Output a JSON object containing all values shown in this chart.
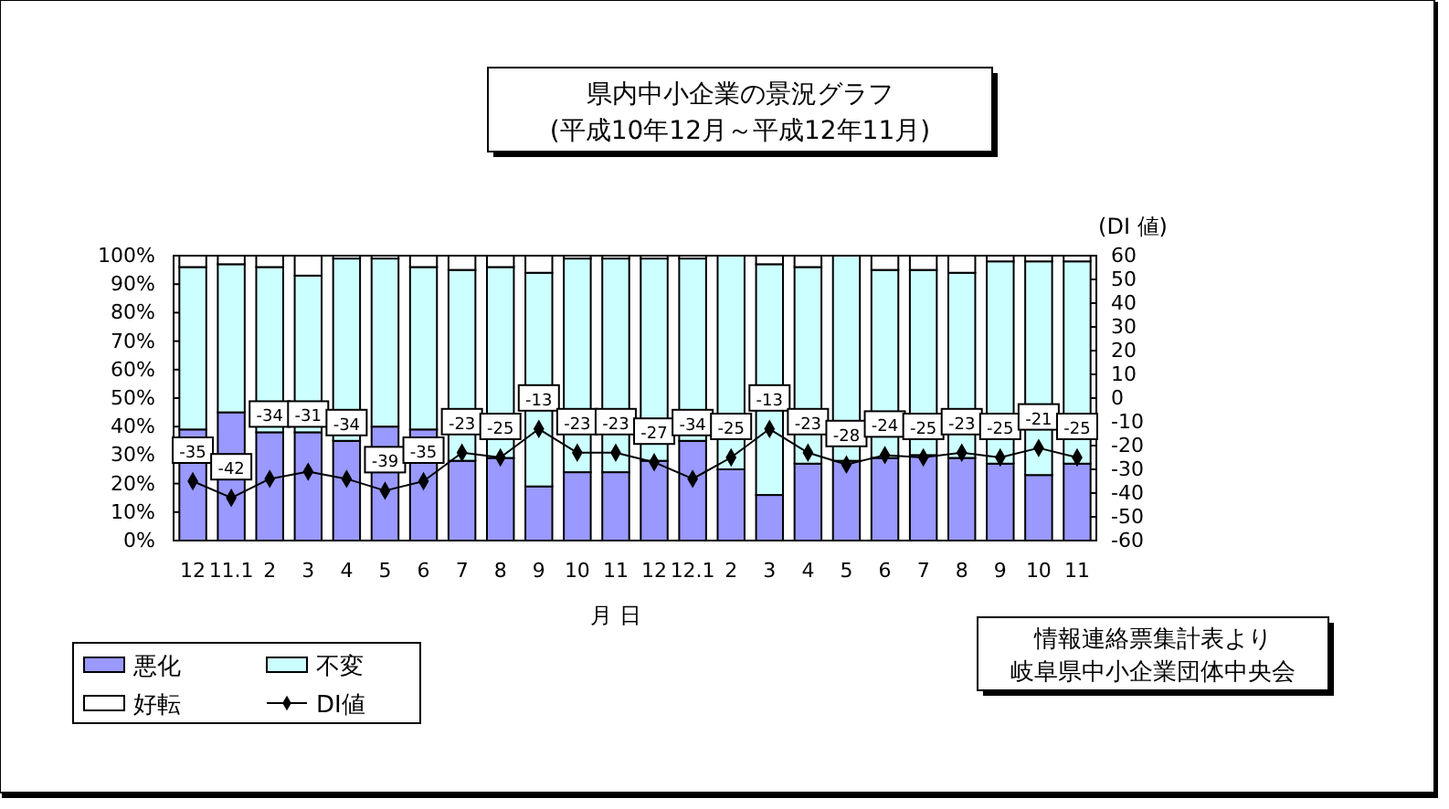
{
  "chart_data": {
    "type": "bar",
    "stacked": true,
    "title": "県内中小企業の景況グラフ",
    "subtitle": "(平成10年12月～平成12年11月)",
    "xlabel": "月 日",
    "y2label": "(DI 値)",
    "categories": [
      "12",
      "11.1",
      "2",
      "3",
      "4",
      "5",
      "6",
      "7",
      "8",
      "9",
      "10",
      "11",
      "12",
      "12.1",
      "2",
      "3",
      "4",
      "5",
      "6",
      "7",
      "8",
      "9",
      "10",
      "11"
    ],
    "series": [
      {
        "name": "悪化",
        "color": "#9999ff",
        "values": [
          39,
          45,
          38,
          38,
          35,
          40,
          39,
          28,
          29,
          19,
          24,
          24,
          28,
          35,
          25,
          16,
          27,
          28,
          29,
          30,
          29,
          27,
          23,
          27
        ]
      },
      {
        "name": "不変",
        "color": "#ccffff",
        "values": [
          57,
          52,
          58,
          55,
          64,
          59,
          57,
          67,
          67,
          75,
          75,
          75,
          71,
          64,
          75,
          81,
          69,
          72,
          66,
          65,
          65,
          71,
          75,
          71
        ]
      },
      {
        "name": "好転",
        "color": "#ffffff",
        "values": [
          4,
          3,
          4,
          7,
          1,
          1,
          4,
          5,
          4,
          6,
          1,
          1,
          1,
          1,
          0,
          3,
          4,
          0,
          5,
          5,
          6,
          2,
          2,
          2
        ]
      },
      {
        "name": "DI値",
        "type": "line",
        "axis": "y2",
        "color": "#000000",
        "marker": "diamond",
        "values": [
          -35,
          -42,
          -34,
          -31,
          -34,
          -39,
          -35,
          -23,
          -25,
          -13,
          -23,
          -23,
          -27,
          -34,
          -25,
          -13,
          -23,
          -28,
          -24,
          -25,
          -23,
          -25,
          -21,
          -25
        ],
        "value_labels": [
          "-35",
          "-42",
          "-34",
          "-31",
          "-34",
          "-39",
          "-35",
          "-23",
          "-25",
          "-13",
          "-23",
          "-23",
          "-27",
          "-34",
          "-25",
          "-13",
          "-23",
          "-28",
          "-24",
          "-25",
          "-23",
          "-25",
          "-21",
          "-25"
        ]
      }
    ],
    "ylim": [
      0,
      100
    ],
    "yticks": [
      {
        "value": 0,
        "label": "0%"
      },
      {
        "value": 10,
        "label": "10%"
      },
      {
        "value": 20,
        "label": "20%"
      },
      {
        "value": 30,
        "label": "30%"
      },
      {
        "value": 40,
        "label": "40%"
      },
      {
        "value": 50,
        "label": "50%"
      },
      {
        "value": 60,
        "label": "60%"
      },
      {
        "value": 70,
        "label": "70%"
      },
      {
        "value": 80,
        "label": "80%"
      },
      {
        "value": 90,
        "label": "90%"
      },
      {
        "value": 100,
        "label": "100%"
      }
    ],
    "y2lim": [
      -60,
      60
    ],
    "y2ticks": [
      -60,
      -50,
      -40,
      -30,
      -20,
      -10,
      0,
      10,
      20,
      30,
      40,
      50,
      60
    ],
    "grid": false,
    "legend": "bottom left",
    "annotations": [
      "情報連絡票集計表より",
      "岐阜県中小企業団体中央会"
    ]
  }
}
